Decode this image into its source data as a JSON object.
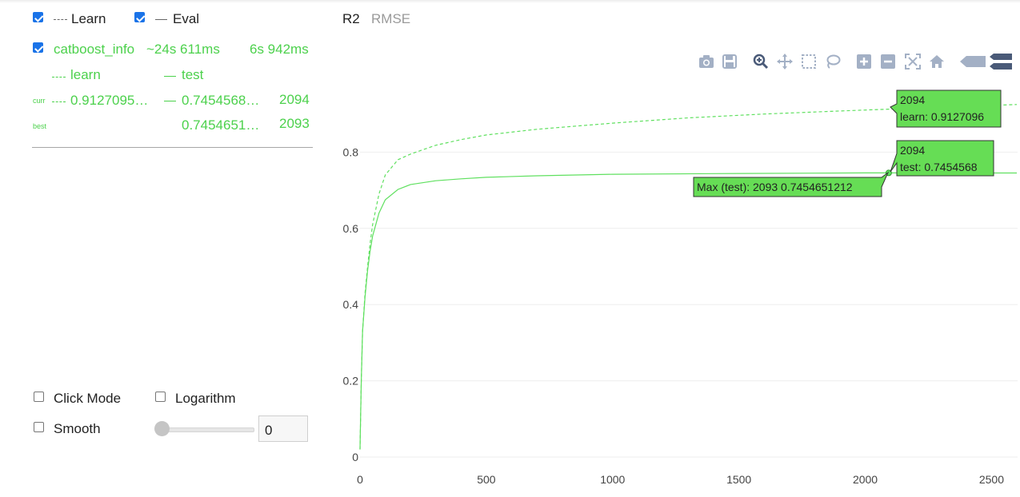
{
  "legend": {
    "learn_label": "Learn",
    "eval_label": "Eval",
    "learn_checked": true,
    "eval_checked": true
  },
  "run": {
    "name": "catboost_info",
    "elapsed": "~24s 611ms",
    "remaining": "6s 942ms",
    "col_learn": "learn",
    "col_test": "test",
    "curr_label": "curr",
    "curr_learn": "0.9127095…",
    "curr_test": "0.7454568…",
    "curr_iter": "2094",
    "best_label": "best",
    "best_test": "0.7454651…",
    "best_iter": "2093"
  },
  "controls": {
    "click_mode": "Click Mode",
    "logarithm": "Logarithm",
    "smooth": "Smooth",
    "smooth_value": "0"
  },
  "tabs": [
    "R2",
    "RMSE"
  ],
  "modebar_icons": [
    "camera-icon",
    "save-icon",
    "zoom-icon",
    "pan-icon",
    "box-select-icon",
    "lasso-icon",
    "zoom-in-icon",
    "zoom-out-icon",
    "autoscale-icon",
    "reset-axes-icon",
    "hover-closest-icon",
    "hover-compare-icon"
  ],
  "colors": {
    "series": "#5fe05f",
    "tooltip_bg": "#66dd55",
    "accent_checkbox": "#1a73e8"
  },
  "chart_data": {
    "type": "line",
    "title": "",
    "xlabel": "",
    "ylabel": "",
    "xlim": [
      0,
      2600
    ],
    "ylim": [
      0,
      0.9
    ],
    "x_ticks": [
      "0",
      "500",
      "1000",
      "1500",
      "2000",
      "2500"
    ],
    "y_ticks": [
      "0",
      "0.2",
      "0.4",
      "0.6",
      "0.8"
    ],
    "grid": true,
    "series": [
      {
        "name": "learn",
        "style": "dashed",
        "x": [
          0,
          5,
          10,
          20,
          30,
          40,
          50,
          75,
          100,
          150,
          200,
          300,
          400,
          500,
          700,
          1000,
          1300,
          1600,
          1900,
          2094,
          2600
        ],
        "y": [
          0.02,
          0.2,
          0.33,
          0.43,
          0.5,
          0.56,
          0.61,
          0.69,
          0.74,
          0.78,
          0.795,
          0.818,
          0.833,
          0.845,
          0.86,
          0.876,
          0.89,
          0.9,
          0.908,
          0.9127,
          0.925
        ]
      },
      {
        "name": "test",
        "style": "solid",
        "x": [
          0,
          5,
          10,
          20,
          30,
          40,
          50,
          75,
          100,
          150,
          200,
          300,
          400,
          500,
          700,
          1000,
          1500,
          2000,
          2093,
          2600
        ],
        "y": [
          0.02,
          0.2,
          0.33,
          0.42,
          0.49,
          0.54,
          0.58,
          0.64,
          0.675,
          0.702,
          0.715,
          0.725,
          0.73,
          0.734,
          0.738,
          0.742,
          0.744,
          0.7454,
          0.74547,
          0.7453
        ]
      }
    ],
    "tooltips": [
      {
        "line1": "2094",
        "line2": "learn: 0.9127096"
      },
      {
        "line1": "2094",
        "line2": "test: 0.7454568"
      },
      {
        "line1": "Max (test): 2093 0.7454651212"
      }
    ],
    "max_marker": {
      "x": 2093,
      "y": 0.7454651212
    }
  }
}
